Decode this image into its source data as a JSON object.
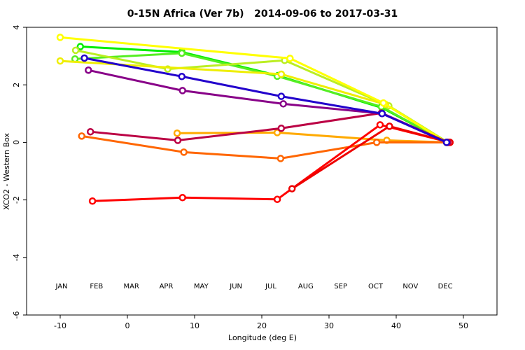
{
  "chart_data": {
    "type": "line",
    "title": "0-15N Africa (Ver 7b)   2014-09-06 to 2017-03-31",
    "xlabel": "Longitude (deg E)",
    "ylabel": "XCO2 - Western Box",
    "xlim": [
      -15,
      55
    ],
    "ylim": [
      -6,
      4
    ],
    "xticks": [
      -10,
      0,
      10,
      20,
      30,
      40,
      50
    ],
    "yticks": [
      -6,
      -4,
      -2,
      0,
      2,
      4
    ],
    "legend_y": -5,
    "series": [
      {
        "name": "JAN",
        "color": "#00ee00",
        "x": [
          -7,
          8.1,
          22.4,
          37.9,
          47.5
        ],
        "values": [
          3.33,
          3.14,
          2.32,
          1.2,
          0
        ]
      },
      {
        "name": "FEB",
        "color": "#55ee22",
        "x": [
          -7.8,
          8.1,
          22.3,
          37.8,
          47.5
        ],
        "values": [
          2.9,
          3.1,
          2.3,
          1.24,
          0
        ]
      },
      {
        "name": "MAR",
        "color": "#bbee22",
        "x": [
          -7.7,
          6,
          23.4,
          38.9,
          47.7
        ],
        "values": [
          3.2,
          2.55,
          2.85,
          1.27,
          0
        ]
      },
      {
        "name": "APR",
        "color": "#eeee00",
        "x": [
          -10,
          22.9,
          38.4,
          47.5
        ],
        "values": [
          2.83,
          2.37,
          1.32,
          0
        ]
      },
      {
        "name": "MAY",
        "color": "#ffff00",
        "x": [
          -10,
          24.2,
          38.1,
          47.5
        ],
        "values": [
          3.65,
          2.92,
          1.37,
          0
        ]
      },
      {
        "name": "JUN",
        "color": "#ffaa00",
        "x": [
          7.4,
          22.3,
          38.6,
          47.7
        ],
        "values": [
          0.32,
          0.34,
          0.07,
          0
        ]
      },
      {
        "name": "JUL",
        "color": "#ff6600",
        "x": [
          -6.8,
          8.4,
          22.8,
          37.1,
          47.7
        ],
        "values": [
          0.22,
          -0.34,
          -0.56,
          0,
          0
        ]
      },
      {
        "name": "AUG",
        "color": "#ff0000",
        "x": [
          -5.2,
          8.2,
          22.3,
          37.6,
          48
        ],
        "values": [
          -2.04,
          -1.92,
          -1.98,
          0.61,
          0
        ]
      },
      {
        "name": "SEP",
        "color": "#ee0000",
        "x": [
          24.5,
          39,
          48
        ],
        "values": [
          -1.61,
          0.56,
          0
        ]
      },
      {
        "name": "OCT",
        "color": "#bb0044",
        "x": [
          -5.5,
          7.5,
          22.9,
          37.8,
          47.7
        ],
        "values": [
          0.37,
          0.07,
          0.49,
          1.02,
          0
        ]
      },
      {
        "name": "NOV",
        "color": "#880088",
        "x": [
          -5.8,
          8.2,
          23.2,
          37.9,
          47.5
        ],
        "values": [
          2.51,
          1.8,
          1.34,
          1.0,
          0
        ]
      },
      {
        "name": "DEC",
        "color": "#2200cc",
        "x": [
          -6.4,
          8.1,
          22.9,
          37.9,
          47.5
        ],
        "values": [
          2.93,
          2.29,
          1.6,
          1.0,
          0
        ]
      }
    ]
  }
}
